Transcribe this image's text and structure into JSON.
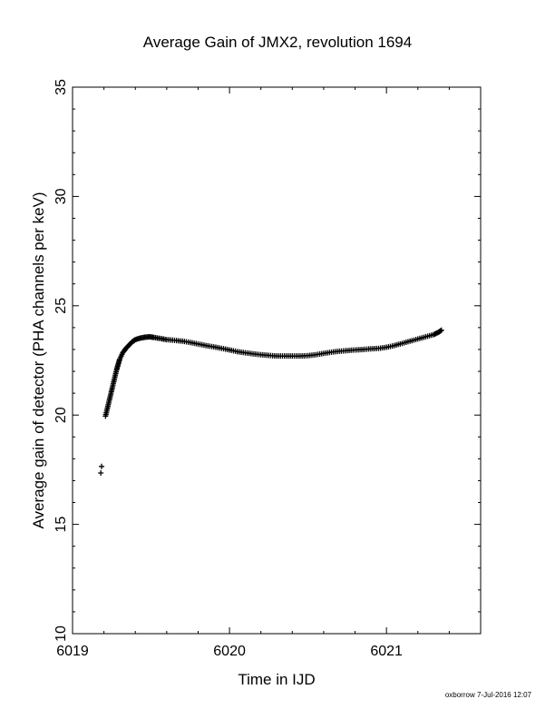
{
  "chart_data": {
    "type": "scatter",
    "title": "Average Gain of JMX2, revolution 1694",
    "xlabel": "Time in IJD",
    "ylabel": "Average gain of detector (PHA channels per keV)",
    "xlim": [
      6019,
      6021.6
    ],
    "ylim": [
      10,
      35
    ],
    "xticks": [
      "6019",
      "6020",
      "6021"
    ],
    "yticks": [
      "10",
      "15",
      "20",
      "25",
      "30",
      "35"
    ],
    "marker": "plus",
    "color": "#000000",
    "grid": false,
    "legend": "none",
    "points": [
      [
        6019.18,
        17.35
      ],
      [
        6019.185,
        17.65
      ],
      [
        6019.21,
        19.95
      ],
      [
        6019.22,
        20.25
      ],
      [
        6019.23,
        20.55
      ],
      [
        6019.24,
        20.85
      ],
      [
        6019.25,
        21.15
      ],
      [
        6019.26,
        21.45
      ],
      [
        6019.27,
        21.75
      ],
      [
        6019.28,
        22.05
      ],
      [
        6019.29,
        22.3
      ],
      [
        6019.3,
        22.55
      ],
      [
        6019.32,
        22.85
      ],
      [
        6019.34,
        23.05
      ],
      [
        6019.36,
        23.2
      ],
      [
        6019.38,
        23.35
      ],
      [
        6019.4,
        23.45
      ],
      [
        6019.43,
        23.52
      ],
      [
        6019.46,
        23.56
      ],
      [
        6019.49,
        23.58
      ],
      [
        6019.52,
        23.55
      ],
      [
        6019.56,
        23.5
      ],
      [
        6019.6,
        23.45
      ],
      [
        6019.65,
        23.42
      ],
      [
        6019.7,
        23.38
      ],
      [
        6019.75,
        23.32
      ],
      [
        6019.8,
        23.25
      ],
      [
        6019.85,
        23.18
      ],
      [
        6019.9,
        23.12
      ],
      [
        6019.95,
        23.05
      ],
      [
        6020.0,
        22.98
      ],
      [
        6020.05,
        22.9
      ],
      [
        6020.1,
        22.85
      ],
      [
        6020.15,
        22.8
      ],
      [
        6020.2,
        22.76
      ],
      [
        6020.25,
        22.73
      ],
      [
        6020.3,
        22.7
      ],
      [
        6020.35,
        22.7
      ],
      [
        6020.4,
        22.7
      ],
      [
        6020.45,
        22.7
      ],
      [
        6020.5,
        22.72
      ],
      [
        6020.55,
        22.76
      ],
      [
        6020.6,
        22.82
      ],
      [
        6020.65,
        22.88
      ],
      [
        6020.7,
        22.92
      ],
      [
        6020.75,
        22.95
      ],
      [
        6020.8,
        22.98
      ],
      [
        6020.85,
        23.0
      ],
      [
        6020.9,
        23.03
      ],
      [
        6020.95,
        23.05
      ],
      [
        6021.0,
        23.1
      ],
      [
        6021.05,
        23.18
      ],
      [
        6021.1,
        23.28
      ],
      [
        6021.15,
        23.38
      ],
      [
        6021.2,
        23.48
      ],
      [
        6021.25,
        23.58
      ],
      [
        6021.3,
        23.68
      ],
      [
        6021.33,
        23.78
      ],
      [
        6021.35,
        23.88
      ]
    ]
  },
  "footer": {
    "credit": "oxborrow  7-Jul-2016 12:07"
  }
}
